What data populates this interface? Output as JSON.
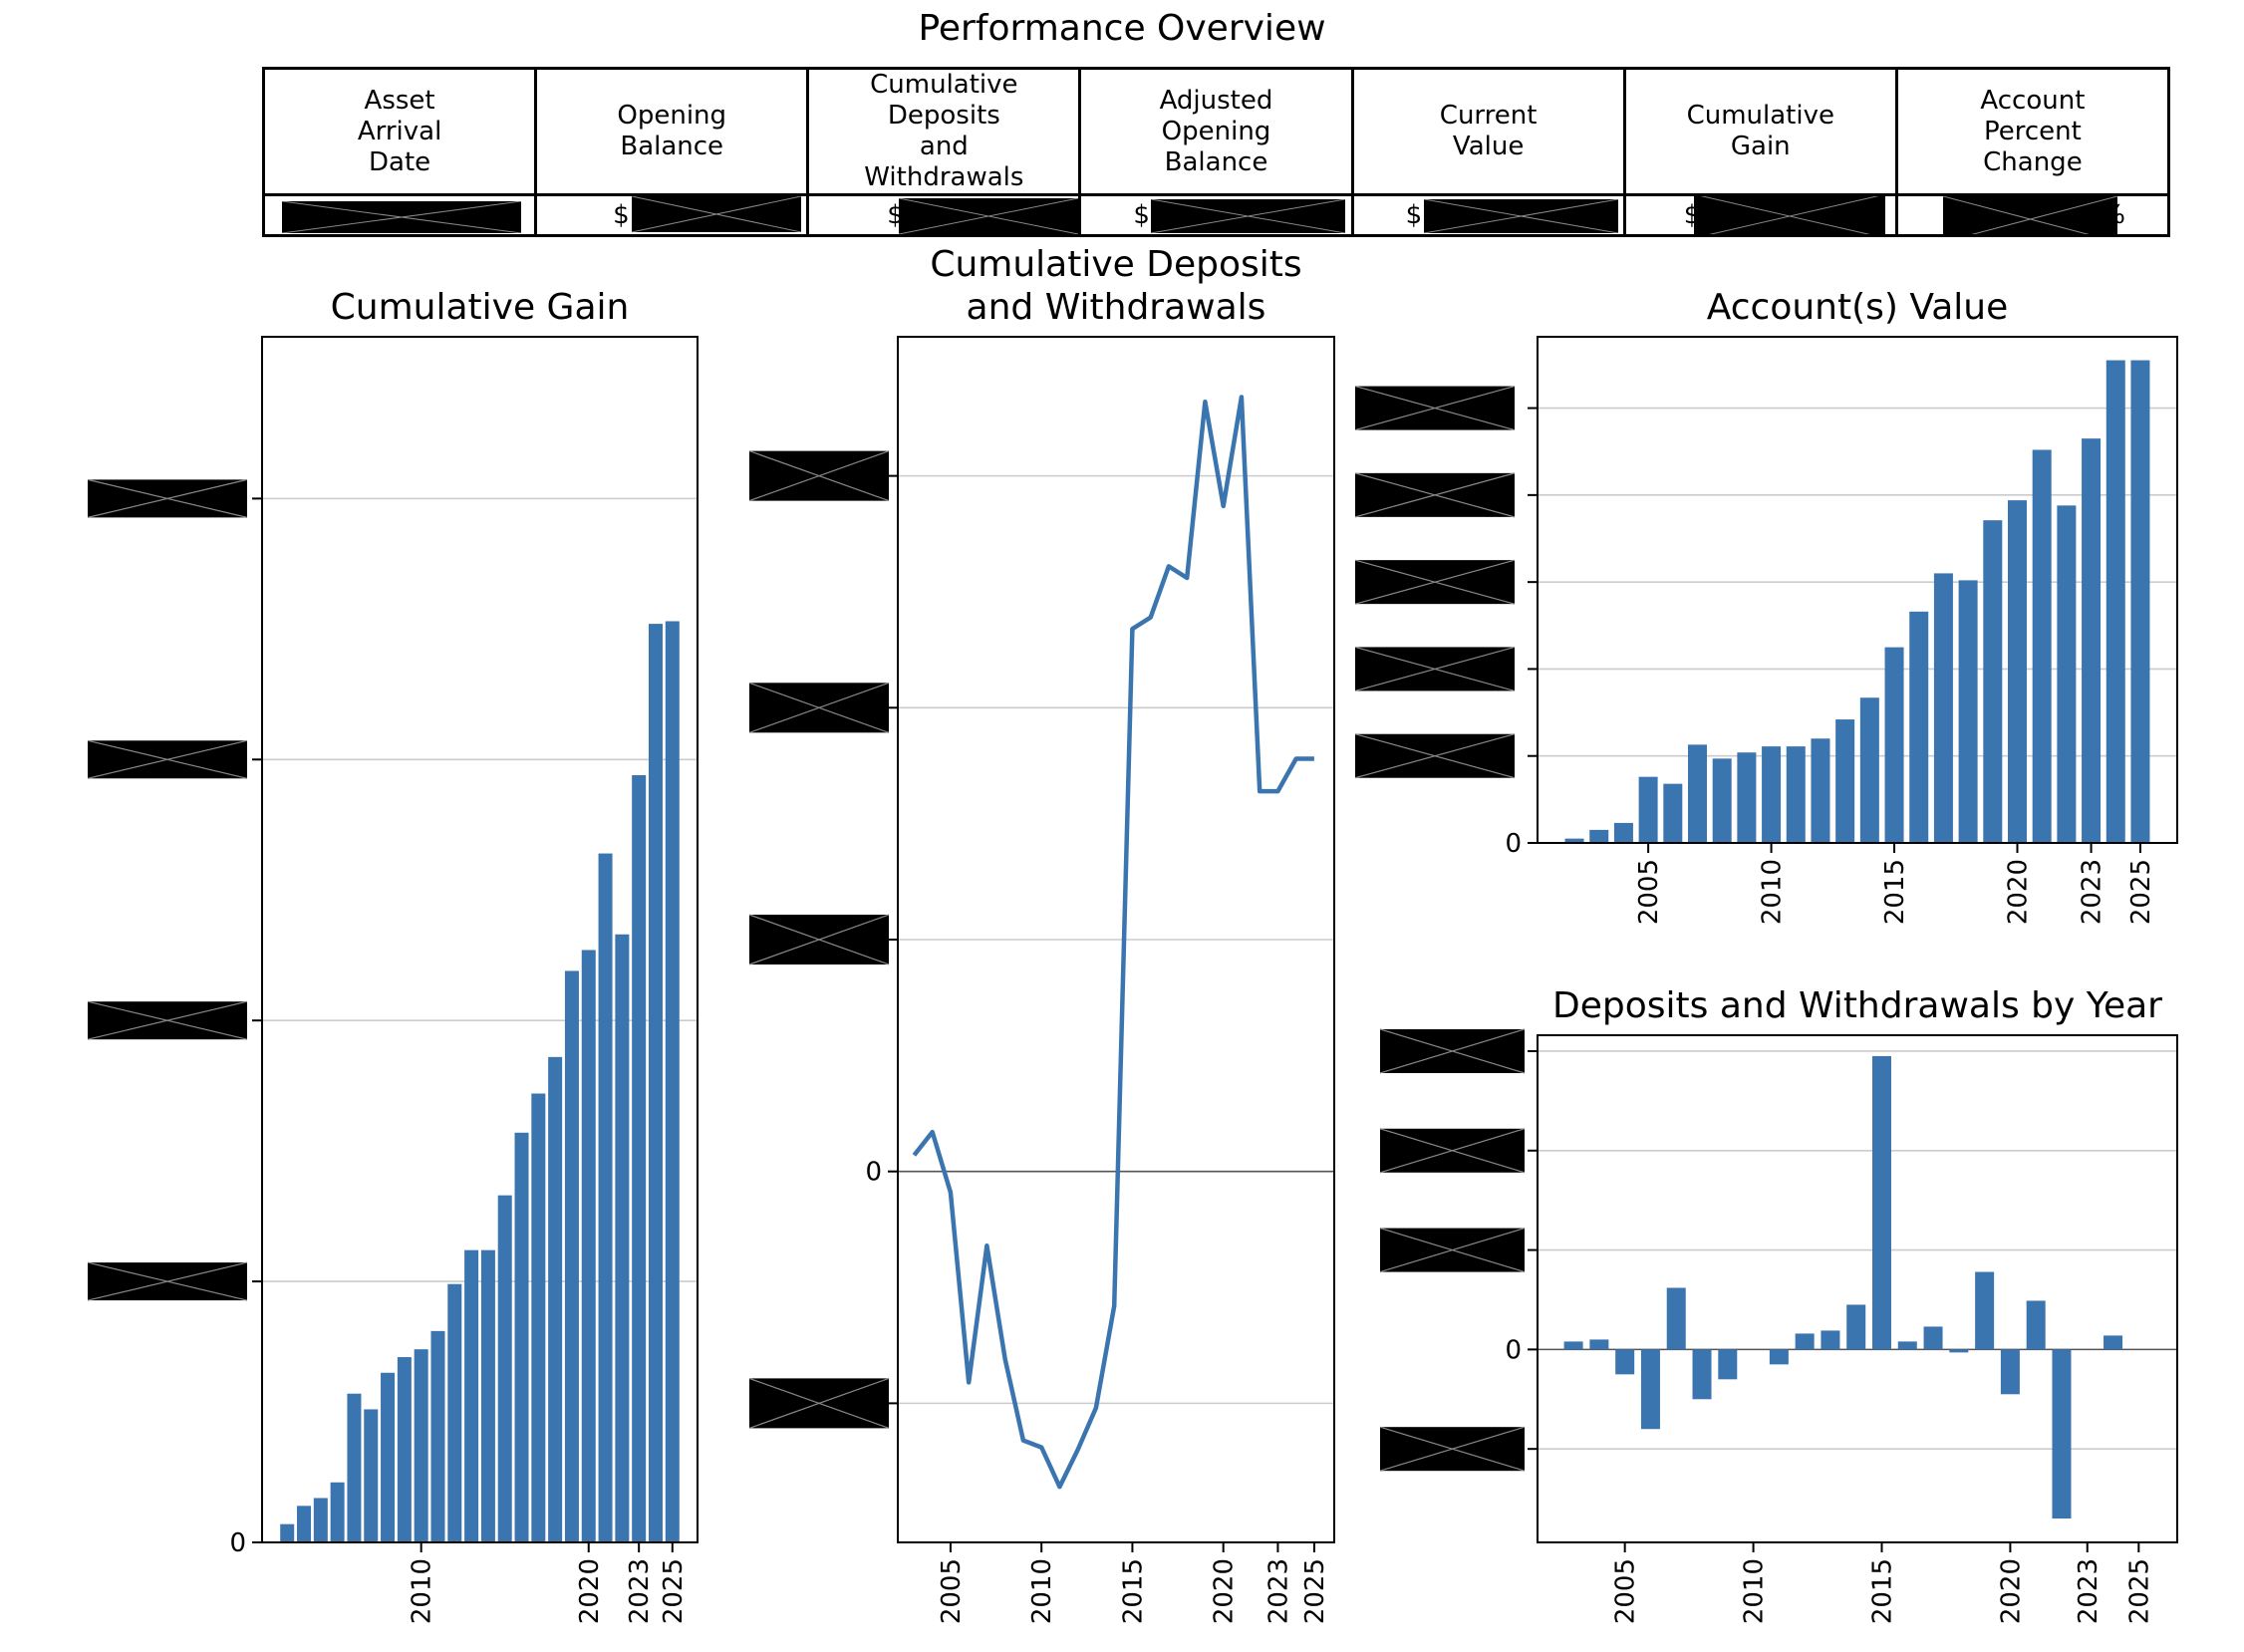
{
  "overview": {
    "title": "Performance Overview",
    "headers": [
      "Asset\nArrival\nDate",
      "Opening\nBalance",
      "Cumulative\nDeposits\nand\nWithdrawals",
      "Adjusted\nOpening\nBalance",
      "Current\nValue",
      "Cumulative\nGain",
      "Account\nPercent\nChange"
    ],
    "row": [
      {
        "prefix": "",
        "suffix": ""
      },
      {
        "prefix": "$",
        "suffix": ""
      },
      {
        "prefix": "$",
        "suffix": ""
      },
      {
        "prefix": "$",
        "suffix": ""
      },
      {
        "prefix": "$",
        "suffix": ""
      },
      {
        "prefix": "$",
        "suffix": ""
      },
      {
        "prefix": "",
        "suffix": "%"
      }
    ]
  },
  "colors": {
    "bar": "#3b75af",
    "line": "#3b75af",
    "grid": "#cccccc",
    "zero_line": "#555555",
    "redaction": "#000000"
  },
  "chart_data": [
    {
      "type": "bar",
      "title": "Cumulative Gain",
      "xlabel": "",
      "ylabel": "",
      "x": [
        2002,
        2003,
        2004,
        2005,
        2006,
        2007,
        2008,
        2009,
        2010,
        2011,
        2012,
        2013,
        2014,
        2015,
        2016,
        2017,
        2018,
        2019,
        2020,
        2021,
        2022,
        2023,
        2024,
        2025
      ],
      "values": [
        0.35,
        0.7,
        0.85,
        1.15,
        2.85,
        2.55,
        3.25,
        3.55,
        3.7,
        4.05,
        4.95,
        5.6,
        5.6,
        6.65,
        7.85,
        8.6,
        9.3,
        10.95,
        11.35,
        13.2,
        11.65,
        14.7,
        17.6,
        17.65
      ],
      "xticks": [
        2010,
        2020,
        2023,
        2025
      ],
      "yticks": [
        0,
        5,
        10,
        15,
        20
      ],
      "ytick_labels": [
        "0",
        "",
        "",
        "",
        ""
      ],
      "ylim": [
        0,
        23.1
      ],
      "xlim": [
        2000.5,
        2026.5
      ],
      "grid": "y"
    },
    {
      "type": "line",
      "title": "Cumulative Deposits\nand Withdrawals",
      "xlabel": "",
      "ylabel": "",
      "x": [
        2003,
        2004,
        2005,
        2006,
        2007,
        2008,
        2009,
        2010,
        2011,
        2012,
        2013,
        2014,
        2015,
        2016,
        2017,
        2018,
        2019,
        2020,
        2021,
        2022,
        2023,
        2024,
        2025
      ],
      "values": [
        0.07,
        0.17,
        -0.09,
        -0.91,
        -0.32,
        -0.81,
        -1.16,
        -1.19,
        -1.36,
        -1.2,
        -1.02,
        -0.58,
        2.34,
        2.39,
        2.61,
        2.56,
        3.32,
        2.87,
        3.34,
        1.64,
        1.64,
        1.78,
        1.78
      ],
      "xticks": [
        2005,
        2010,
        2015,
        2020,
        2023,
        2025
      ],
      "yticks": [
        -1,
        0,
        1,
        2,
        3
      ],
      "ytick_labels": [
        "",
        "0",
        "",
        "",
        ""
      ],
      "ylim": [
        -1.6,
        3.6
      ],
      "xlim": [
        2002.1,
        2026.1
      ],
      "grid": "y"
    },
    {
      "type": "bar",
      "title": "Account(s) Value",
      "xlabel": "",
      "ylabel": "",
      "x": [
        2002,
        2003,
        2004,
        2005,
        2006,
        2007,
        2008,
        2009,
        2010,
        2011,
        2012,
        2013,
        2014,
        2015,
        2016,
        2017,
        2018,
        2019,
        2020,
        2021,
        2022,
        2023,
        2024,
        2025
      ],
      "values": [
        0.5,
        1.5,
        2.3,
        7.6,
        6.8,
        11.3,
        9.7,
        10.4,
        11.1,
        11.1,
        12.0,
        14.2,
        16.7,
        22.5,
        26.6,
        31.0,
        30.2,
        37.1,
        39.4,
        45.2,
        38.8,
        46.5,
        55.5,
        55.5
      ],
      "xticks": [
        2005,
        2010,
        2015,
        2020,
        2023,
        2025
      ],
      "yticks": [
        0,
        10,
        20,
        30,
        40,
        50
      ],
      "ytick_labels": [
        "0",
        "",
        "",
        "",
        "",
        ""
      ],
      "ylim": [
        0,
        58.2
      ],
      "xlim": [
        2000.5,
        2026.5
      ],
      "grid": "y"
    },
    {
      "type": "bar",
      "title": "Deposits and Withdrawals by Year",
      "xlabel": "",
      "ylabel": "",
      "x": [
        2003,
        2004,
        2005,
        2006,
        2007,
        2008,
        2009,
        2010,
        2011,
        2012,
        2013,
        2014,
        2015,
        2016,
        2017,
        2018,
        2019,
        2020,
        2021,
        2022,
        2023,
        2024
      ],
      "values": [
        0.08,
        0.1,
        -0.25,
        -0.8,
        0.62,
        -0.5,
        -0.3,
        0,
        -0.15,
        0.16,
        0.19,
        0.45,
        2.95,
        0.08,
        0.23,
        -0.03,
        0.78,
        -0.45,
        0.49,
        -1.7,
        0,
        0.14
      ],
      "xticks": [
        2005,
        2010,
        2015,
        2020,
        2023,
        2025
      ],
      "yticks": [
        -1,
        0,
        1,
        2,
        3
      ],
      "ytick_labels": [
        "",
        "0",
        "",
        "",
        ""
      ],
      "ylim": [
        -1.94,
        3.16
      ],
      "xlim": [
        2001.6,
        2026.5
      ],
      "grid": "y"
    }
  ]
}
